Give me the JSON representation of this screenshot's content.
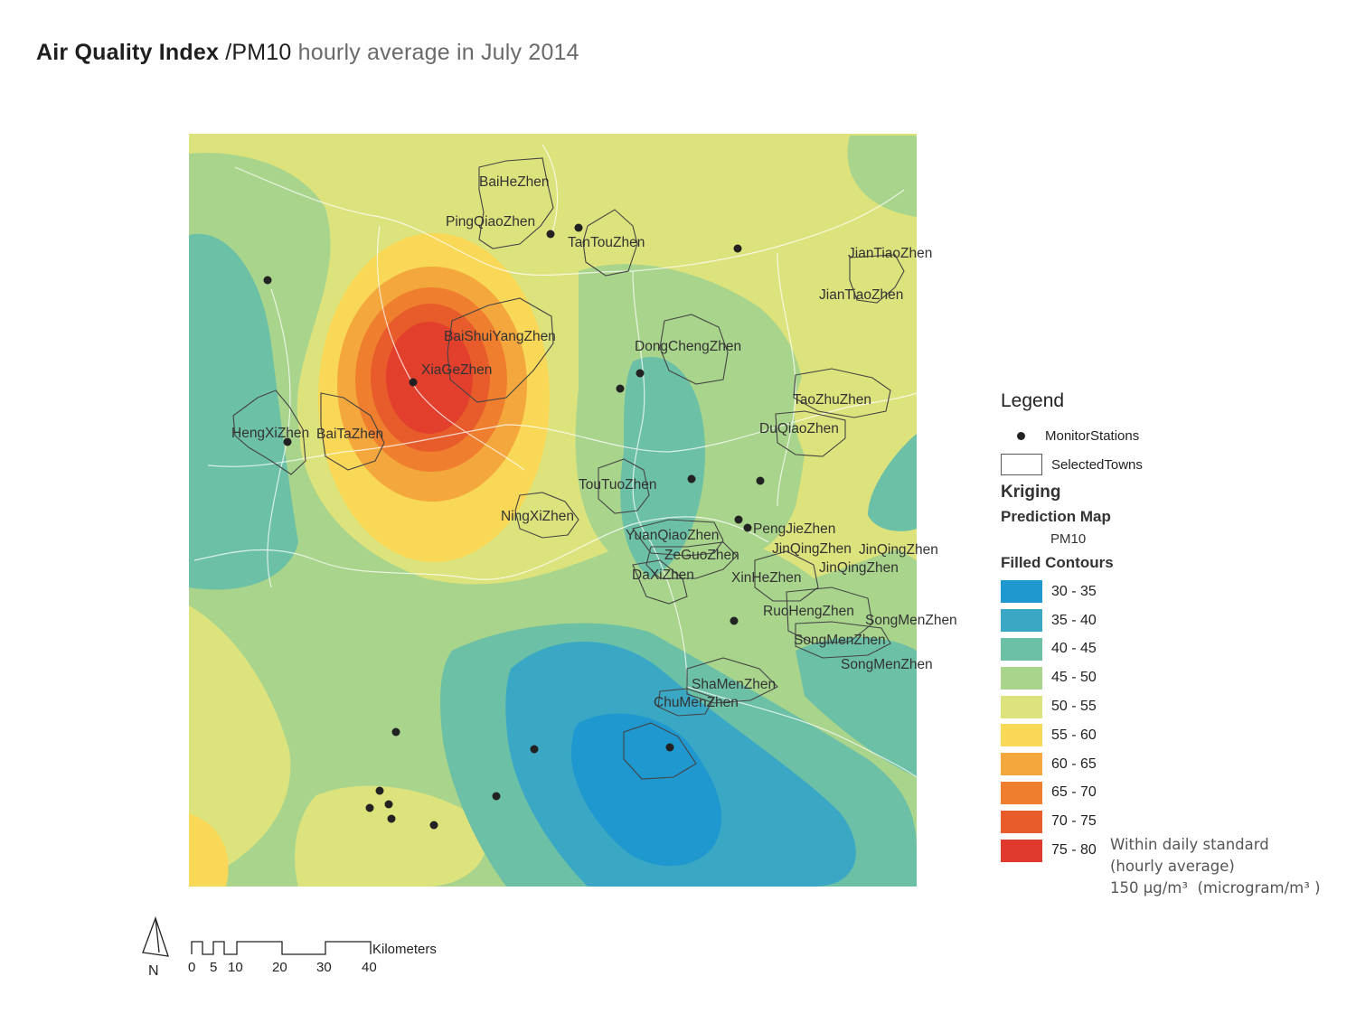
{
  "title": {
    "part1": "Air Quality Index",
    "part2": " /PM10",
    "part3": " hourly average in July 2014"
  },
  "towns": [
    {
      "name": "BaiHeZhen"
    },
    {
      "name": "PingQiaoZhen"
    },
    {
      "name": "TanTouZhen"
    },
    {
      "name": "JianTiaoZhen"
    },
    {
      "name": "JianTiaoZhen"
    },
    {
      "name": "BaiShuiYangZhen"
    },
    {
      "name": "XiaGeZhen"
    },
    {
      "name": "DongChengZhen"
    },
    {
      "name": "TaoZhuZhen"
    },
    {
      "name": "DuQiaoZhen"
    },
    {
      "name": "HengXiZhen"
    },
    {
      "name": "BaiTaZhen"
    },
    {
      "name": "TouTuoZhen"
    },
    {
      "name": "NingXiZhen"
    },
    {
      "name": "YuanQiaoZhen"
    },
    {
      "name": "PengJieZhen"
    },
    {
      "name": "ZeGuoZhen"
    },
    {
      "name": "JinQingZhen"
    },
    {
      "name": "JinQingZhen"
    },
    {
      "name": "DaXiZhen"
    },
    {
      "name": "XinHeZhen"
    },
    {
      "name": "JinQingZhen"
    },
    {
      "name": "RuoHengZhen"
    },
    {
      "name": "SongMenZhen"
    },
    {
      "name": "SongMenZhen"
    },
    {
      "name": "SongMenZhen"
    },
    {
      "name": "ShaMenZhen"
    },
    {
      "name": "ChuMenZhen"
    }
  ],
  "legend": {
    "title": "Legend",
    "stations_label": "MonitorStations",
    "towns_label": "SelectedTowns",
    "kriging": "Kriging",
    "prediction_map": "Prediction Map",
    "variable": "PM10",
    "filled_contours": "Filled Contours",
    "classes": [
      {
        "range": "30 - 35",
        "color": "#1f97cf"
      },
      {
        "range": "35 - 40",
        "color": "#3aa8c4"
      },
      {
        "range": "40 - 45",
        "color": "#6cc0a6"
      },
      {
        "range": "45 - 50",
        "color": "#a9d48c"
      },
      {
        "range": "50 - 55",
        "color": "#dde37c"
      },
      {
        "range": "55 - 60",
        "color": "#f8d856"
      },
      {
        "range": "60 - 65",
        "color": "#f4a73c"
      },
      {
        "range": "65 - 70",
        "color": "#ef7f2e"
      },
      {
        "range": "70 - 75",
        "color": "#e85c2b"
      },
      {
        "range": "75 - 80",
        "color": "#e03a2e"
      }
    ]
  },
  "note": {
    "line1": "Within daily standard",
    "line2": "(hourly average)",
    "line3_value": "150 μg/m³",
    "line3_unit": "(microgram/m³ )"
  },
  "scale_bar": {
    "north": "N",
    "unit": "Kilometers",
    "ticks": [
      "0",
      "5",
      "10",
      "20",
      "30",
      "40"
    ]
  }
}
